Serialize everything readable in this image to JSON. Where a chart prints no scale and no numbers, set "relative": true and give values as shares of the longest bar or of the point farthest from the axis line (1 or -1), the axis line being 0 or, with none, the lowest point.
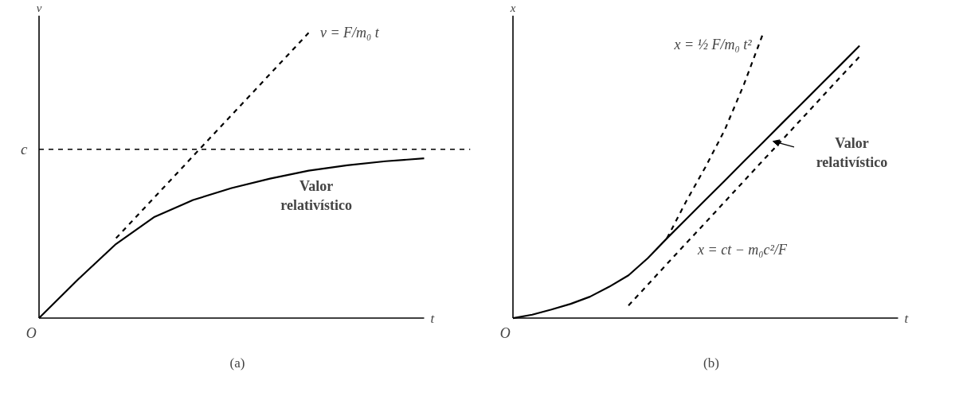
{
  "chart_data": [
    {
      "type": "line",
      "title": "(a)",
      "xlabel": "t",
      "ylabel": "v",
      "relative": true,
      "categories": [
        null,
        null,
        null,
        null,
        null,
        null,
        null,
        null,
        null,
        null,
        null
      ],
      "series": [
        {
          "color": "#000000",
          "line_style": "solid",
          "values": [
            0,
            0.134,
            0.26,
            0.355,
            0.414,
            0.456,
            0.489,
            0.517,
            0.536,
            0.55,
            0.56
          ]
        },
        {
          "color": "#000000",
          "line_style": "dashed",
          "values": [
            null,
            null,
            0.28,
            0.424,
            0.568,
            0.712,
            0.856,
            1.0,
            null,
            null,
            null
          ]
        }
      ],
      "ref_lines": [
        {
          "axis": "y",
          "value": 0.592,
          "label": "c",
          "color": "#000000",
          "line_style": "dashed"
        }
      ],
      "annotations": [
        "O",
        "v = F/m₀ t",
        "Valor relativístico"
      ]
    },
    {
      "type": "line",
      "title": "(b)",
      "xlabel": "t",
      "ylabel": "x",
      "relative": true,
      "categories": [
        null,
        null,
        null,
        null,
        null,
        null,
        null,
        null,
        null,
        null,
        null,
        null,
        null,
        null,
        null,
        null,
        null,
        null,
        null,
        null,
        null
      ],
      "series": [
        {
          "color": "#000000",
          "line_style": "solid",
          "values": [
            0,
            0.012,
            0.03,
            0.05,
            0.075,
            0.11,
            0.15,
            0.21,
            0.28,
            0.347,
            0.415,
            0.482,
            0.55,
            0.617,
            0.685,
            0.752,
            0.82,
            0.887,
            0.955,
            null,
            null
          ]
        },
        {
          "color": "#000000",
          "line_style": "dashed",
          "values": [
            null,
            null,
            null,
            null,
            null,
            null,
            null,
            null,
            0.28,
            0.41,
            0.53,
            0.66,
            0.82,
            1.0,
            null,
            null,
            null,
            null,
            null,
            null,
            null
          ]
        },
        {
          "color": "#000000",
          "line_style": "dashed",
          "values": [
            null,
            null,
            null,
            null,
            null,
            null,
            0.044,
            0.117,
            0.19,
            0.263,
            0.335,
            0.408,
            0.481,
            0.554,
            0.626,
            0.699,
            0.772,
            0.845,
            0.917,
            null,
            null
          ]
        }
      ],
      "annotations": [
        "O",
        "x = ½ F/m₀ t²",
        "x = ct − m₀c²/F",
        "Valor relativístico"
      ]
    }
  ]
}
